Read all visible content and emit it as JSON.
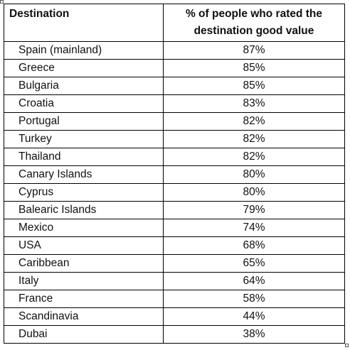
{
  "table": {
    "headers": {
      "destination": "Destination",
      "percent": "% of people who rated the destination good value"
    },
    "rows": [
      {
        "destination": "Spain (mainland)",
        "percent": "87%"
      },
      {
        "destination": "Greece",
        "percent": "85%"
      },
      {
        "destination": "Bulgaria",
        "percent": "85%"
      },
      {
        "destination": "Croatia",
        "percent": "83%"
      },
      {
        "destination": "Portugal",
        "percent": "82%"
      },
      {
        "destination": "Turkey",
        "percent": "82%"
      },
      {
        "destination": "Thailand",
        "percent": "82%"
      },
      {
        "destination": "Canary Islands",
        "percent": "80%"
      },
      {
        "destination": "Cyprus",
        "percent": "80%"
      },
      {
        "destination": "Balearic Islands",
        "percent": "79%"
      },
      {
        "destination": "Mexico",
        "percent": "74%"
      },
      {
        "destination": "USA",
        "percent": "68%"
      },
      {
        "destination": "Caribbean",
        "percent": "65%"
      },
      {
        "destination": "Italy",
        "percent": "64%"
      },
      {
        "destination": "France",
        "percent": "58%"
      },
      {
        "destination": "Scandinavia",
        "percent": "44%"
      },
      {
        "destination": "Dubai",
        "percent": "38%"
      }
    ]
  }
}
